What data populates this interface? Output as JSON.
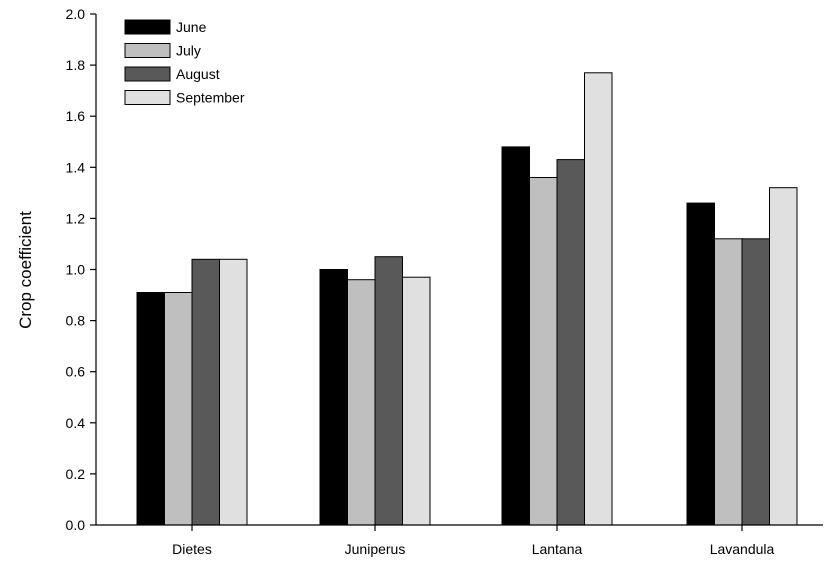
{
  "chart_data": {
    "type": "bar",
    "categories": [
      "Dietes",
      "Juniperus",
      "Lantana",
      "Lavandula"
    ],
    "series": [
      {
        "name": "June",
        "color": "#000000",
        "values": [
          0.91,
          1.0,
          1.48,
          1.26
        ]
      },
      {
        "name": "July",
        "color": "#bfbfbf",
        "values": [
          0.91,
          0.96,
          1.36,
          1.12
        ]
      },
      {
        "name": "August",
        "color": "#595959",
        "values": [
          1.04,
          1.05,
          1.43,
          1.12
        ]
      },
      {
        "name": "September",
        "color": "#e0e0e0",
        "values": [
          1.04,
          0.97,
          1.77,
          1.32
        ]
      }
    ],
    "yticks": [
      "0.0",
      "0.2",
      "0.4",
      "0.6",
      "0.8",
      "1.0",
      "1.2",
      "1.4",
      "1.6",
      "1.8",
      "2.0"
    ],
    "ylim": [
      0,
      2.0
    ],
    "xlabel": "",
    "ylabel": "Crop coefficient",
    "legend_position": "top-left",
    "grid": false
  }
}
